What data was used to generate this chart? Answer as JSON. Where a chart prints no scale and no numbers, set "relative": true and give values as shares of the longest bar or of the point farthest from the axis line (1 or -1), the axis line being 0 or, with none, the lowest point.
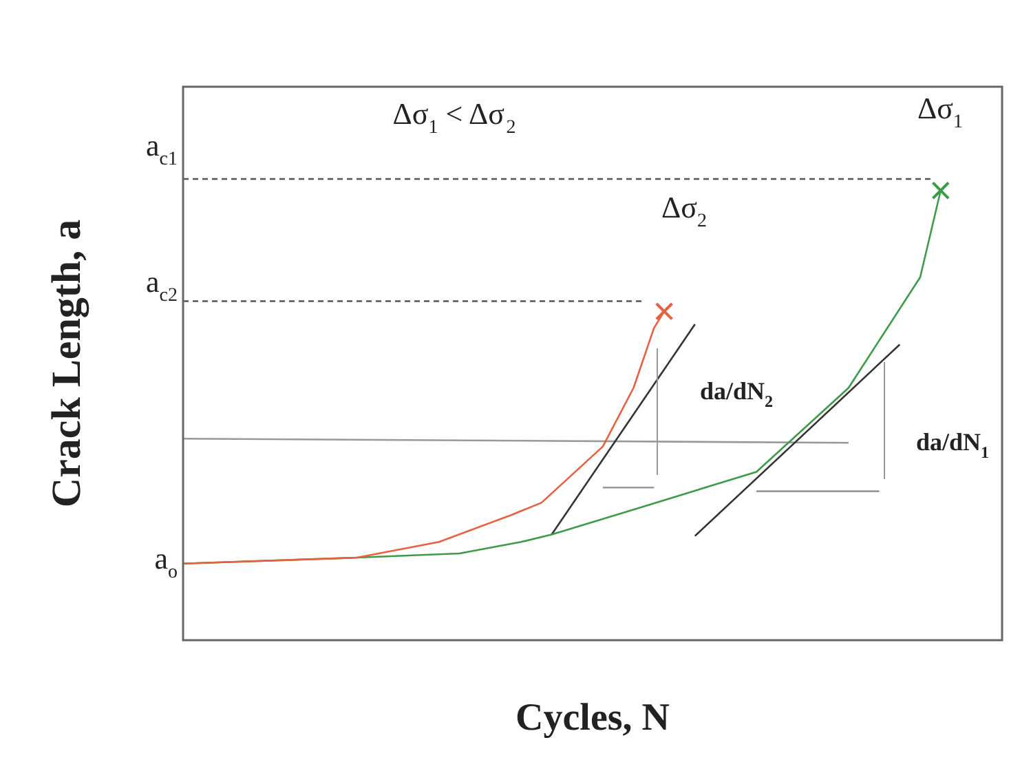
{
  "chart_data": {
    "type": "line",
    "relative": true,
    "xlabel": "Cycles, N",
    "ylabel": "Crack Length, a",
    "categories": [
      null,
      null,
      null,
      null,
      null,
      null,
      null,
      null,
      null,
      null,
      null,
      null,
      null,
      null,
      null,
      null,
      null,
      null,
      null,
      null,
      null,
      null,
      null,
      null,
      null,
      null,
      null,
      null,
      null,
      null,
      null,
      null,
      null,
      null,
      null,
      null,
      null,
      null,
      null,
      null,
      null,
      null,
      null,
      null,
      null,
      null,
      null,
      null,
      null,
      null,
      null,
      null,
      null,
      null,
      null,
      null,
      null,
      null,
      null,
      null,
      null,
      null,
      null,
      null,
      null,
      null,
      null,
      null,
      null,
      null,
      null,
      null,
      null,
      null,
      null,
      null,
      null,
      null,
      null,
      null,
      null
    ],
    "series": [
      {
        "color": "#e8603c",
        "values": [
          0.166,
          null,
          null,
          null,
          null,
          null,
          null,
          null,
          null,
          null,
          null,
          null,
          null,
          null,
          null,
          null,
          null,
          0.179,
          null,
          null,
          null,
          null,
          null,
          null,
          null,
          0.213,
          null,
          null,
          null,
          null,
          null,
          null,
          0.271,
          null,
          null,
          0.298,
          null,
          null,
          null,
          null,
          null,
          0.42,
          null,
          null,
          0.547,
          null,
          0.677,
          0.713,
          null,
          null,
          null,
          null,
          null,
          null,
          null,
          null,
          null,
          null,
          null,
          null,
          null,
          null,
          null,
          null,
          null,
          null,
          null,
          null,
          null,
          null,
          null,
          null,
          null,
          null,
          null,
          null,
          null,
          null,
          null,
          null,
          null
        ]
      },
      {
        "color": "#3a9c46",
        "values": [
          0.166,
          null,
          null,
          null,
          null,
          null,
          null,
          null,
          null,
          null,
          null,
          null,
          null,
          null,
          null,
          null,
          null,
          0.179,
          null,
          null,
          null,
          null,
          null,
          null,
          null,
          null,
          null,
          0.188,
          null,
          null,
          null,
          null,
          null,
          0.213,
          null,
          null,
          0.229,
          null,
          null,
          null,
          null,
          null,
          null,
          null,
          null,
          0.29,
          null,
          null,
          null,
          null,
          null,
          null,
          null,
          null,
          null,
          null,
          0.365,
          null,
          null,
          null,
          null,
          null,
          null,
          null,
          null,
          0.547,
          null,
          null,
          null,
          null,
          null,
          null,
          0.787,
          null,
          0.975,
          null,
          null,
          null,
          null,
          null,
          null
        ]
      },
      {
        "color": "#333333",
        "values": [
          null,
          null,
          null,
          null,
          null,
          null,
          null,
          null,
          null,
          null,
          null,
          null,
          null,
          null,
          null,
          null,
          null,
          null,
          null,
          null,
          null,
          null,
          null,
          null,
          null,
          null,
          null,
          null,
          null,
          null,
          null,
          null,
          null,
          null,
          null,
          null,
          0.229,
          null,
          null,
          null,
          null,
          null,
          null,
          null,
          null,
          null,
          null,
          null,
          null,
          null,
          0.685,
          null,
          null,
          null,
          null,
          null,
          null,
          null,
          null,
          null,
          null,
          null,
          null,
          null,
          null,
          null,
          null,
          null,
          null,
          null,
          null,
          null,
          null,
          null,
          null,
          null,
          null,
          null,
          null,
          null,
          null
        ]
      },
      {
        "color": "#333333",
        "values": [
          null,
          null,
          null,
          null,
          null,
          null,
          null,
          null,
          null,
          null,
          null,
          null,
          null,
          null,
          null,
          null,
          null,
          null,
          null,
          null,
          null,
          null,
          null,
          null,
          null,
          null,
          null,
          null,
          null,
          null,
          null,
          null,
          null,
          null,
          null,
          null,
          null,
          null,
          null,
          null,
          null,
          null,
          null,
          null,
          null,
          null,
          null,
          null,
          null,
          null,
          0.226,
          null,
          null,
          null,
          null,
          null,
          null,
          null,
          null,
          null,
          null,
          null,
          null,
          null,
          null,
          null,
          null,
          null,
          null,
          null,
          0.641,
          null,
          null,
          null,
          null,
          null,
          null,
          null,
          null,
          null,
          null
        ]
      },
      {
        "color": "#999999",
        "values": [
          0.437,
          null,
          null,
          null,
          null,
          null,
          null,
          null,
          null,
          null,
          null,
          null,
          null,
          null,
          null,
          null,
          null,
          null,
          null,
          null,
          null,
          null,
          null,
          null,
          null,
          null,
          null,
          null,
          null,
          null,
          null,
          null,
          null,
          null,
          null,
          null,
          null,
          null,
          null,
          null,
          null,
          null,
          null,
          null,
          null,
          null,
          null,
          null,
          null,
          null,
          null,
          null,
          null,
          null,
          null,
          null,
          null,
          null,
          null,
          null,
          null,
          null,
          null,
          null,
          null,
          0.428,
          null,
          null,
          null,
          null,
          null,
          null,
          null,
          null,
          null,
          null,
          null,
          null,
          null,
          null,
          null
        ]
      },
      {
        "color": "#999999",
        "values": [
          null,
          null,
          null,
          null,
          null,
          null,
          null,
          null,
          null,
          null,
          null,
          null,
          null,
          null,
          null,
          null,
          null,
          null,
          null,
          null,
          null,
          null,
          null,
          null,
          null,
          null,
          null,
          null,
          null,
          null,
          null,
          null,
          null,
          null,
          null,
          null,
          null,
          null,
          null,
          null,
          null,
          0.331,
          null,
          null,
          null,
          null,
          0.331,
          null,
          null,
          null,
          null,
          null,
          null,
          null,
          null,
          null,
          null,
          null,
          null,
          null,
          null,
          null,
          null,
          null,
          null,
          null,
          null,
          null,
          null,
          null,
          null,
          null,
          null,
          null,
          null,
          null,
          null,
          null,
          null,
          null,
          null
        ]
      },
      {
        "color": "#999999",
        "values": [
          null,
          null,
          null,
          null,
          null,
          null,
          null,
          null,
          null,
          null,
          null,
          null,
          null,
          null,
          null,
          null,
          null,
          null,
          null,
          null,
          null,
          null,
          null,
          null,
          null,
          null,
          null,
          null,
          null,
          null,
          null,
          null,
          null,
          null,
          null,
          null,
          null,
          null,
          null,
          null,
          null,
          null,
          null,
          null,
          null,
          null,
          null,
          null,
          null,
          null,
          null,
          null,
          null,
          null,
          null,
          null,
          0.323,
          null,
          null,
          null,
          null,
          null,
          null,
          null,
          null,
          null,
          null,
          null,
          0.323,
          null,
          null,
          null,
          null,
          null,
          null,
          null,
          null,
          null,
          null,
          null,
          null
        ]
      },
      {
        "color": "#555555",
        "line_style": "dashed",
        "values": [
          1,
          null,
          null,
          null,
          null,
          null,
          null,
          null,
          null,
          null,
          null,
          null,
          null,
          null,
          null,
          null,
          null,
          null,
          null,
          null,
          null,
          null,
          null,
          null,
          null,
          null,
          null,
          null,
          null,
          null,
          null,
          null,
          null,
          null,
          null,
          null,
          null,
          null,
          null,
          null,
          null,
          null,
          null,
          null,
          null,
          null,
          null,
          null,
          null,
          null,
          null,
          null,
          null,
          null,
          null,
          null,
          null,
          null,
          null,
          null,
          null,
          null,
          null,
          null,
          null,
          null,
          null,
          null,
          null,
          null,
          null,
          null,
          null,
          1,
          null,
          null,
          null,
          null,
          null,
          null,
          null
        ]
      },
      {
        "color": "#555555",
        "line_style": "dashed",
        "values": [
          0.735,
          null,
          null,
          null,
          null,
          null,
          null,
          null,
          null,
          null,
          null,
          null,
          null,
          null,
          null,
          null,
          null,
          null,
          null,
          null,
          null,
          null,
          null,
          null,
          null,
          null,
          null,
          null,
          null,
          null,
          null,
          null,
          null,
          null,
          null,
          null,
          null,
          null,
          null,
          null,
          null,
          null,
          null,
          null,
          null,
          0.735,
          null,
          null,
          null,
          null,
          null,
          null,
          null,
          null,
          null,
          null,
          null,
          null,
          null,
          null,
          null,
          null,
          null,
          null,
          null,
          null,
          null,
          null,
          null,
          null,
          null,
          null,
          null,
          null,
          null,
          null,
          null,
          null,
          null,
          null,
          null
        ]
      },
      {
        "color": "#e8603c",
        "marker": "cross",
        "values": [
          null,
          null,
          null,
          null,
          null,
          null,
          null,
          null,
          null,
          null,
          null,
          null,
          null,
          null,
          null,
          null,
          null,
          null,
          null,
          null,
          null,
          null,
          null,
          null,
          null,
          null,
          null,
          null,
          null,
          null,
          null,
          null,
          null,
          null,
          null,
          null,
          null,
          null,
          null,
          null,
          null,
          null,
          null,
          null,
          null,
          null,
          null,
          0.713,
          null,
          null,
          null,
          null,
          null,
          null,
          null,
          null,
          null,
          null,
          null,
          null,
          null,
          null,
          null,
          null,
          null,
          null,
          null,
          null,
          null,
          null,
          null,
          null,
          null,
          null,
          null,
          null,
          null,
          null,
          null,
          null,
          null
        ]
      },
      {
        "color": "#3a9c46",
        "marker": "cross",
        "values": [
          null,
          null,
          null,
          null,
          null,
          null,
          null,
          null,
          null,
          null,
          null,
          null,
          null,
          null,
          null,
          null,
          null,
          null,
          null,
          null,
          null,
          null,
          null,
          null,
          null,
          null,
          null,
          null,
          null,
          null,
          null,
          null,
          null,
          null,
          null,
          null,
          null,
          null,
          null,
          null,
          null,
          null,
          null,
          null,
          null,
          null,
          null,
          null,
          null,
          null,
          null,
          null,
          null,
          null,
          null,
          null,
          null,
          null,
          null,
          null,
          null,
          null,
          null,
          null,
          null,
          null,
          null,
          null,
          null,
          null,
          null,
          null,
          null,
          null,
          0.975,
          null,
          null,
          null,
          null,
          null,
          null
        ]
      }
    ],
    "annotations": [
      "a$_{c1}$",
      "a$_{c2}$",
      "a$_{o}$",
      "Δσ$_{1}$ < Δσ$_{2}$",
      "Δσ$_{1}$",
      "Δσ$_{2}$",
      "da/dN$_{2}$",
      "da/dN$_{1}$"
    ]
  }
}
